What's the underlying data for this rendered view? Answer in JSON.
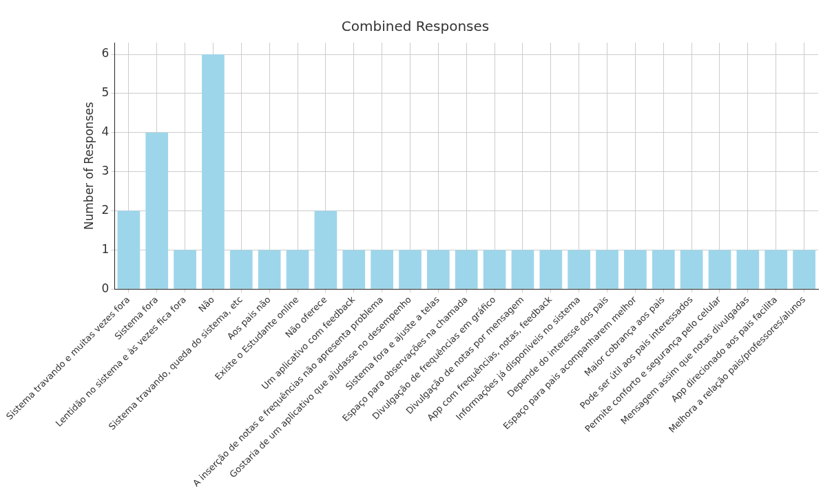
{
  "chart_data": {
    "type": "bar",
    "title": "Combined Responses",
    "ylabel": "Number of Responses",
    "categories": [
      "Sistema travando e muitas vezes fora",
      "Sistema fora",
      "Lentidão no sistema e às vezes fica fora",
      "Não",
      "Sistema travando, queda do sistema, etc",
      "Aos pais não",
      "Existe o Estudante online",
      "Não oferece",
      "Um aplicativo com feedback",
      "A inserção de notas e frequências não apresenta problema",
      "Gostaria de um aplicativo que ajudasse no desempenho",
      "Sistema fora e ajuste a telas",
      "Espaço para observações na chamada",
      "Divulgação de frequências em gráfico",
      "Divulgação de notas por mensagem",
      "App com frequências, notas, feedback",
      "Informações já disponíveis no sistema",
      "Depende do interesse dos pais",
      "Espaço para pais acompanharem melhor",
      "Maior cobrança aos pais",
      "Pode ser útil aos pais interessados",
      "Permite conforto e segurança pelo celular",
      "Mensagem assim que notas divulgadas",
      "App direcionado aos pais facilita",
      "Melhora a relação pais/professores/alunos"
    ],
    "values": [
      2,
      4,
      1,
      6,
      1,
      1,
      1,
      2,
      1,
      1,
      1,
      1,
      1,
      1,
      1,
      1,
      1,
      1,
      1,
      1,
      1,
      1,
      1,
      1,
      1
    ],
    "color": "#9dd6ea",
    "ylim": [
      0,
      6.3
    ],
    "yticks": [
      0,
      1,
      2,
      3,
      4,
      5,
      6
    ],
    "grid": true
  }
}
